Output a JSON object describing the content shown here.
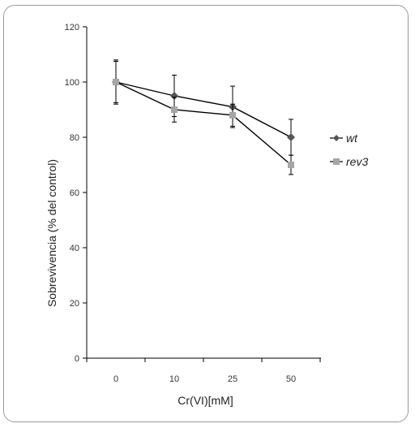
{
  "chart_data": {
    "type": "line",
    "title": "",
    "xlabel": "Cr(VI)[mM]",
    "ylabel": "Sobrevivencia (% del control)",
    "categories": [
      "0",
      "10",
      "25",
      "50"
    ],
    "ylim": [
      0,
      120
    ],
    "yticks": [
      0,
      20,
      40,
      60,
      80,
      100,
      120
    ],
    "grid": false,
    "legend": "right",
    "series": [
      {
        "name": "wt",
        "values": [
          100,
          95,
          91,
          80
        ],
        "error": [
          8,
          7.5,
          7.5,
          6.5
        ],
        "color": "#555555",
        "marker": "diamond"
      },
      {
        "name": "rev3",
        "values": [
          100,
          90,
          88,
          70
        ],
        "error": [
          7.5,
          4.5,
          4,
          3.5
        ],
        "color": "#a6a6a6",
        "marker": "square"
      }
    ]
  }
}
